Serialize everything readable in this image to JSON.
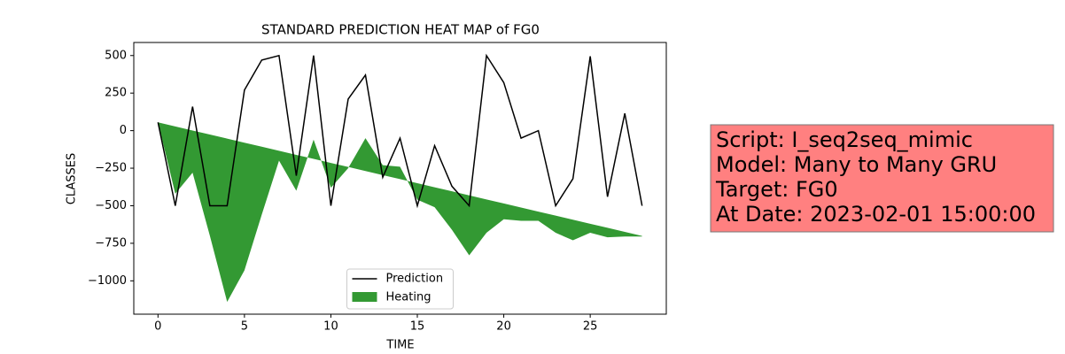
{
  "chart_data": {
    "type": "line_fill",
    "title": "STANDARD PREDICTION HEAT MAP of FG0",
    "xlabel": "TIME",
    "ylabel": "CLASSES",
    "x": [
      0,
      1,
      2,
      3,
      4,
      5,
      6,
      7,
      8,
      9,
      10,
      11,
      12,
      13,
      14,
      15,
      16,
      17,
      18,
      19,
      20,
      21,
      22,
      23,
      24,
      25,
      26,
      27,
      28
    ],
    "series": [
      {
        "name": "Prediction",
        "type": "line",
        "color": "#000000",
        "values": [
          55,
          -500,
          160,
          -500,
          -500,
          270,
          470,
          500,
          -300,
          500,
          -500,
          210,
          370,
          -310,
          -50,
          -500,
          -100,
          -370,
          -500,
          500,
          320,
          -50,
          0,
          -500,
          -320,
          495,
          -440,
          115,
          -500
        ]
      },
      {
        "name": "Heating",
        "type": "fill_between",
        "color": "#339933",
        "values": [
          55,
          28,
          1,
          -26,
          -53,
          -80,
          -107,
          -134,
          -161,
          -188,
          -215,
          -242,
          -269,
          -296,
          -323,
          -350,
          -377,
          -404,
          -431,
          -458,
          -485,
          -512,
          -539,
          -566,
          -593,
          -620,
          -647,
          -674,
          -701
        ],
        "values2": [
          55,
          -420,
          -280,
          -700,
          -1140,
          -930,
          -560,
          -200,
          -400,
          -60,
          -380,
          -250,
          -50,
          -230,
          -240,
          -460,
          -510,
          -660,
          -830,
          -680,
          -590,
          -600,
          -600,
          -680,
          -730,
          -680,
          -710,
          -705,
          -705
        ]
      }
    ],
    "xlim": [
      -1.4,
      29.4
    ],
    "ylim": [
      -1222,
      587
    ],
    "xticks": [
      0,
      5,
      10,
      15,
      20,
      25
    ],
    "yticks": [
      500,
      250,
      0,
      {
        "value": -250,
        "label": "−250"
      },
      {
        "value": -500,
        "label": "−500"
      },
      {
        "value": -750,
        "label": "−750"
      },
      {
        "value": -1000,
        "label": "−1000"
      }
    ],
    "legend": "lower center",
    "annotation": [
      "Script: I_seq2seq_mimic",
      "Model: Many to Many GRU",
      "Target: FG0",
      "At Date: 2023-02-01 15:00:00"
    ],
    "annotation_color": "#ff8080"
  }
}
